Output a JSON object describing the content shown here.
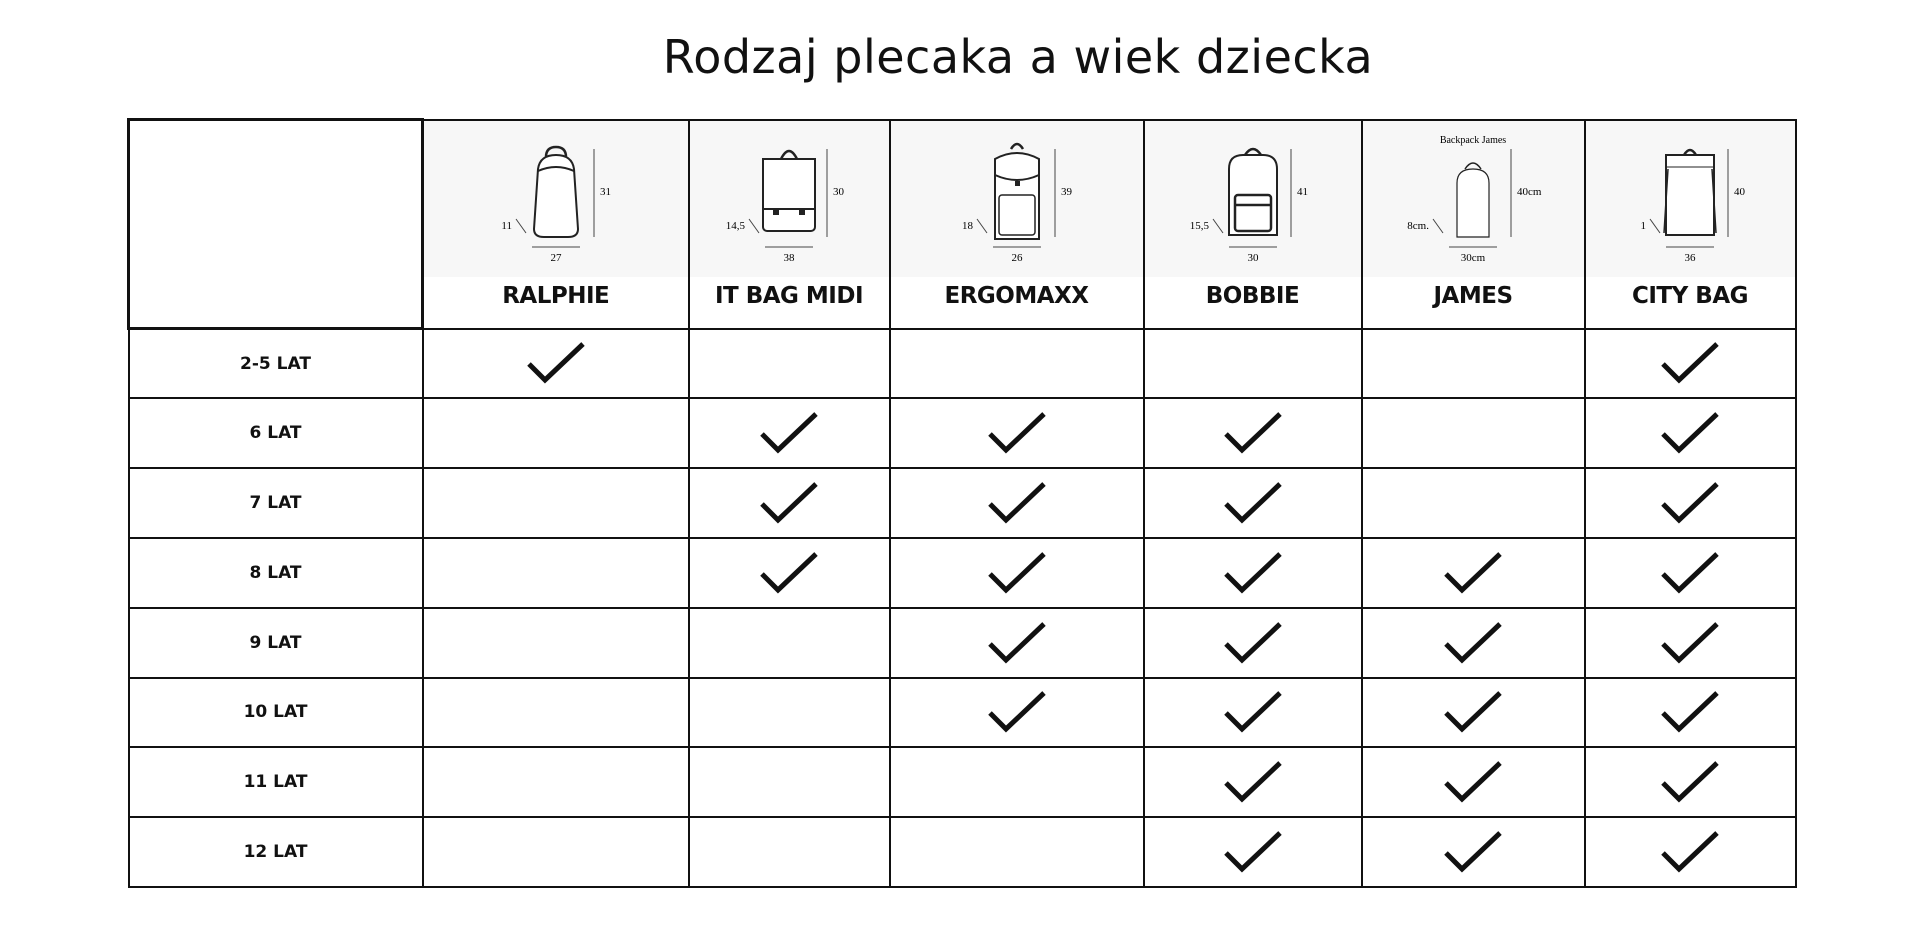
{
  "title": "Rodzaj plecaka a wiek dziecka",
  "products": [
    {
      "name": "RALPHIE",
      "dims": {
        "height": "31",
        "width": "27",
        "depth": "11"
      },
      "shape": "rounded"
    },
    {
      "name": "IT BAG MIDI",
      "dims": {
        "height": "30",
        "width": "38",
        "depth": "14,5"
      },
      "shape": "satchel"
    },
    {
      "name": "ERGOMAXX",
      "dims": {
        "height": "39",
        "width": "26",
        "depth": "18"
      },
      "shape": "rolltop"
    },
    {
      "name": "BOBBIE",
      "dims": {
        "height": "41",
        "width": "30",
        "depth": "15,5"
      },
      "shape": "pocket"
    },
    {
      "name": "JAMES",
      "dims": {
        "height": "40cm",
        "width": "30cm",
        "depth": "8cm."
      },
      "caption": "Backpack   James",
      "shape": "slim"
    },
    {
      "name": "CITY BAG",
      "dims": {
        "height": "40",
        "width": "36",
        "depth": "1"
      },
      "shape": "square"
    }
  ],
  "rows": [
    {
      "label": "2-5 LAT",
      "checks": [
        true,
        false,
        false,
        false,
        false,
        true
      ]
    },
    {
      "label": "6 LAT",
      "checks": [
        false,
        true,
        true,
        true,
        false,
        true
      ]
    },
    {
      "label": "7 LAT",
      "checks": [
        false,
        true,
        true,
        true,
        false,
        true
      ]
    },
    {
      "label": "8 LAT",
      "checks": [
        false,
        true,
        true,
        true,
        true,
        true
      ]
    },
    {
      "label": "9 LAT",
      "checks": [
        false,
        false,
        true,
        true,
        true,
        true
      ]
    },
    {
      "label": "10 LAT",
      "checks": [
        false,
        false,
        true,
        true,
        true,
        true
      ]
    },
    {
      "label": "11 LAT",
      "checks": [
        false,
        false,
        false,
        true,
        true,
        true
      ]
    },
    {
      "label": "12 LAT",
      "checks": [
        false,
        false,
        false,
        true,
        true,
        true
      ]
    }
  ],
  "icons": {
    "check": "checkmark-icon",
    "product": "backpack-icon"
  }
}
